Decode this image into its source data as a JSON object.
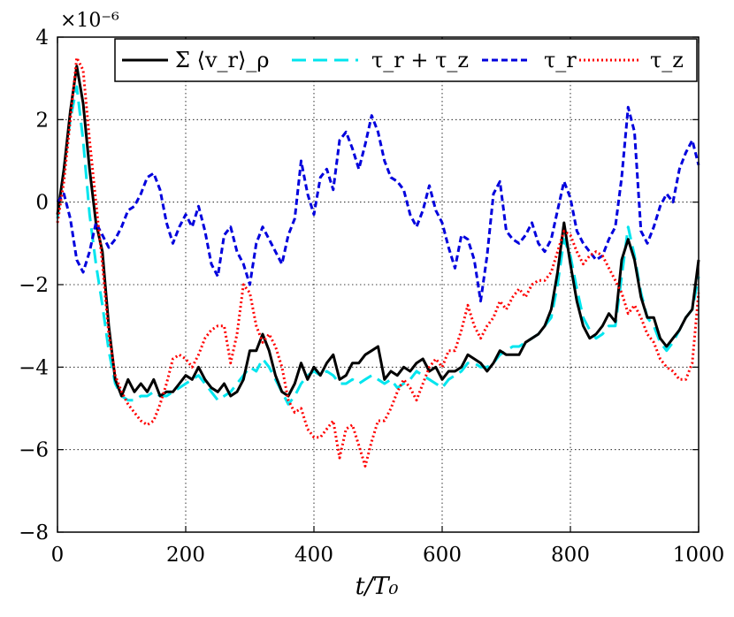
{
  "chart_data": {
    "type": "line",
    "x_label": "t/T₀",
    "y_multiplier": "×10⁻⁶",
    "x_range": [
      0,
      1000
    ],
    "y_range": [
      -8,
      4
    ],
    "x_ticks": [
      0,
      200,
      400,
      600,
      800,
      1000
    ],
    "y_ticks": [
      -8,
      -6,
      -4,
      -2,
      0,
      2,
      4
    ],
    "x_tick_labels": [
      "0",
      "200",
      "400",
      "600",
      "800",
      "1000"
    ],
    "y_tick_labels": [
      "−8",
      "−6",
      "−4",
      "−2",
      "0",
      "2",
      "4"
    ],
    "grid": true,
    "legend_position": "top",
    "series": [
      {
        "name": "Σ ⟨v_r⟩_ρ",
        "color": "#000000",
        "style": "solid",
        "x": [
          0,
          10,
          20,
          30,
          40,
          50,
          60,
          70,
          80,
          90,
          100,
          110,
          120,
          130,
          140,
          150,
          160,
          170,
          180,
          190,
          200,
          210,
          220,
          230,
          240,
          250,
          260,
          270,
          280,
          290,
          300,
          310,
          320,
          330,
          340,
          350,
          360,
          370,
          380,
          390,
          400,
          410,
          420,
          430,
          440,
          450,
          460,
          470,
          480,
          490,
          500,
          510,
          520,
          530,
          540,
          550,
          560,
          570,
          580,
          590,
          600,
          610,
          620,
          630,
          640,
          650,
          660,
          670,
          680,
          690,
          700,
          710,
          720,
          730,
          740,
          750,
          760,
          770,
          780,
          790,
          800,
          810,
          820,
          830,
          840,
          850,
          860,
          870,
          880,
          890,
          900,
          910,
          920,
          930,
          940,
          950,
          960,
          970,
          980,
          990,
          1000
        ],
        "y": [
          -0.3,
          0.8,
          2.2,
          3.3,
          2.4,
          0.8,
          -0.5,
          -1.2,
          -3.0,
          -4.3,
          -4.7,
          -4.3,
          -4.6,
          -4.4,
          -4.6,
          -4.3,
          -4.7,
          -4.6,
          -4.6,
          -4.4,
          -4.2,
          -4.3,
          -4.0,
          -4.3,
          -4.5,
          -4.6,
          -4.4,
          -4.7,
          -4.6,
          -4.3,
          -3.6,
          -3.6,
          -3.2,
          -3.6,
          -4.2,
          -4.6,
          -4.7,
          -4.4,
          -3.9,
          -4.3,
          -4.0,
          -4.2,
          -3.9,
          -3.7,
          -4.3,
          -4.2,
          -3.9,
          -3.9,
          -3.7,
          -3.6,
          -3.5,
          -4.3,
          -4.1,
          -4.2,
          -4.0,
          -4.1,
          -3.9,
          -3.8,
          -4.1,
          -4.0,
          -4.3,
          -4.1,
          -4.1,
          -4.0,
          -3.7,
          -3.8,
          -3.9,
          -4.1,
          -3.9,
          -3.6,
          -3.7,
          -3.7,
          -3.7,
          -3.4,
          -3.3,
          -3.2,
          -3.0,
          -2.6,
          -1.7,
          -0.5,
          -1.5,
          -2.4,
          -3.0,
          -3.3,
          -3.2,
          -3.0,
          -2.7,
          -2.9,
          -1.4,
          -0.9,
          -1.4,
          -2.3,
          -2.8,
          -2.8,
          -3.3,
          -3.5,
          -3.3,
          -3.1,
          -2.8,
          -2.6,
          -1.4
        ]
      },
      {
        "name": "τ_r + τ_z",
        "color": "#00e5ee",
        "style": "dashed-long",
        "x": [
          0,
          10,
          20,
          30,
          40,
          50,
          60,
          70,
          80,
          90,
          100,
          110,
          120,
          130,
          140,
          150,
          160,
          170,
          180,
          190,
          200,
          210,
          220,
          230,
          240,
          250,
          260,
          270,
          280,
          290,
          300,
          310,
          320,
          330,
          340,
          350,
          360,
          370,
          380,
          390,
          400,
          410,
          420,
          430,
          440,
          450,
          460,
          470,
          480,
          490,
          500,
          510,
          520,
          530,
          540,
          550,
          560,
          570,
          580,
          590,
          600,
          610,
          620,
          630,
          640,
          650,
          660,
          670,
          680,
          690,
          700,
          710,
          720,
          730,
          740,
          750,
          760,
          770,
          780,
          790,
          800,
          810,
          820,
          830,
          840,
          850,
          860,
          870,
          880,
          890,
          900,
          910,
          920,
          930,
          940,
          950,
          960,
          970,
          980,
          990,
          1000
        ],
        "y": [
          -0.4,
          0.8,
          2.0,
          2.8,
          1.5,
          -0.3,
          -1.5,
          -2.5,
          -3.6,
          -4.4,
          -4.7,
          -4.8,
          -4.8,
          -4.7,
          -4.7,
          -4.6,
          -4.7,
          -4.7,
          -4.6,
          -4.5,
          -4.4,
          -4.3,
          -4.2,
          -4.4,
          -4.6,
          -4.8,
          -4.7,
          -4.6,
          -4.4,
          -4.2,
          -4.0,
          -4.1,
          -3.8,
          -4.0,
          -4.3,
          -4.6,
          -4.9,
          -4.7,
          -4.4,
          -4.2,
          -4.1,
          -4.2,
          -4.1,
          -4.2,
          -4.4,
          -4.4,
          -4.3,
          -4.4,
          -4.3,
          -4.2,
          -4.3,
          -4.4,
          -4.3,
          -4.5,
          -4.4,
          -4.3,
          -4.1,
          -4.2,
          -4.3,
          -4.4,
          -4.5,
          -4.3,
          -4.2,
          -4.1,
          -3.9,
          -3.9,
          -4.0,
          -4.0,
          -3.9,
          -3.7,
          -3.6,
          -3.5,
          -3.5,
          -3.4,
          -3.3,
          -3.2,
          -3.0,
          -2.8,
          -2.0,
          -0.9,
          -1.3,
          -2.1,
          -2.8,
          -3.1,
          -3.3,
          -3.2,
          -3.0,
          -3.0,
          -1.8,
          -0.6,
          -1.3,
          -2.2,
          -2.8,
          -3.0,
          -3.4,
          -3.6,
          -3.4,
          -3.1,
          -2.8,
          -2.6,
          -1.8
        ]
      },
      {
        "name": "τ_r",
        "color": "#0000dd",
        "style": "dashed",
        "x": [
          0,
          10,
          20,
          30,
          40,
          50,
          60,
          70,
          80,
          90,
          100,
          110,
          120,
          130,
          140,
          150,
          160,
          170,
          180,
          190,
          200,
          210,
          220,
          230,
          240,
          250,
          260,
          270,
          280,
          290,
          300,
          310,
          320,
          330,
          340,
          350,
          360,
          370,
          380,
          390,
          400,
          410,
          420,
          430,
          440,
          450,
          460,
          470,
          480,
          490,
          500,
          510,
          520,
          530,
          540,
          550,
          560,
          570,
          580,
          590,
          600,
          610,
          620,
          630,
          640,
          650,
          660,
          670,
          680,
          690,
          700,
          710,
          720,
          730,
          740,
          750,
          760,
          770,
          780,
          790,
          800,
          810,
          820,
          830,
          840,
          850,
          860,
          870,
          880,
          890,
          900,
          910,
          920,
          930,
          940,
          950,
          960,
          970,
          980,
          990,
          1000
        ],
        "y": [
          0.0,
          0.2,
          -0.4,
          -1.4,
          -1.7,
          -1.2,
          -0.5,
          -0.8,
          -1.1,
          -0.9,
          -0.6,
          -0.2,
          -0.1,
          0.2,
          0.6,
          0.7,
          0.3,
          -0.5,
          -1.0,
          -0.6,
          -0.3,
          -0.6,
          -0.1,
          -0.7,
          -1.5,
          -1.8,
          -0.8,
          -0.6,
          -1.2,
          -1.5,
          -2.0,
          -1.0,
          -0.6,
          -0.9,
          -1.2,
          -1.5,
          -0.8,
          -0.4,
          1.0,
          0.2,
          -0.3,
          0.6,
          0.8,
          0.3,
          1.5,
          1.7,
          1.3,
          0.8,
          1.4,
          2.1,
          1.7,
          1.0,
          0.6,
          0.5,
          0.3,
          -0.3,
          -0.6,
          -0.2,
          0.4,
          -0.2,
          -0.5,
          -1.1,
          -1.6,
          -0.8,
          -0.9,
          -1.4,
          -2.4,
          -1.3,
          0.2,
          0.5,
          -0.7,
          -0.9,
          -1.0,
          -0.8,
          -0.5,
          -1.0,
          -1.2,
          -0.9,
          -0.2,
          0.5,
          0.1,
          -0.7,
          -1.0,
          -1.2,
          -1.4,
          -1.3,
          -0.9,
          -0.6,
          0.6,
          2.3,
          1.7,
          -0.7,
          -1.0,
          -0.6,
          -0.1,
          0.2,
          0.0,
          0.8,
          1.2,
          1.5,
          0.9
        ]
      },
      {
        "name": "τ_z",
        "color": "#ff0000",
        "style": "dotted",
        "x": [
          0,
          10,
          20,
          30,
          40,
          50,
          60,
          70,
          80,
          90,
          100,
          110,
          120,
          130,
          140,
          150,
          160,
          170,
          180,
          190,
          200,
          210,
          220,
          230,
          240,
          250,
          260,
          270,
          280,
          290,
          300,
          310,
          320,
          330,
          340,
          350,
          360,
          370,
          380,
          390,
          400,
          410,
          420,
          430,
          440,
          450,
          460,
          470,
          480,
          490,
          500,
          510,
          520,
          530,
          540,
          550,
          560,
          570,
          580,
          590,
          600,
          610,
          620,
          630,
          640,
          650,
          660,
          670,
          680,
          690,
          700,
          710,
          720,
          730,
          740,
          750,
          760,
          770,
          780,
          790,
          800,
          810,
          820,
          830,
          840,
          850,
          860,
          870,
          880,
          890,
          900,
          910,
          920,
          930,
          940,
          950,
          960,
          970,
          980,
          990,
          1000
        ],
        "y": [
          -0.5,
          0.5,
          2.0,
          3.5,
          3.2,
          1.5,
          0.0,
          -1.5,
          -3.2,
          -4.2,
          -4.6,
          -4.9,
          -5.1,
          -5.3,
          -5.4,
          -5.3,
          -4.9,
          -4.4,
          -3.8,
          -3.7,
          -3.8,
          -4.0,
          -3.7,
          -3.3,
          -3.1,
          -3.0,
          -3.0,
          -3.9,
          -3.2,
          -2.0,
          -2.2,
          -3.0,
          -3.4,
          -3.2,
          -3.5,
          -4.0,
          -4.8,
          -5.1,
          -5.0,
          -5.5,
          -5.7,
          -5.7,
          -5.5,
          -5.3,
          -6.2,
          -5.5,
          -5.4,
          -5.9,
          -6.4,
          -5.8,
          -5.3,
          -5.3,
          -5.0,
          -4.6,
          -4.3,
          -4.5,
          -4.8,
          -4.4,
          -4.0,
          -3.8,
          -4.0,
          -3.6,
          -3.6,
          -3.1,
          -2.5,
          -3.0,
          -3.3,
          -3.0,
          -2.8,
          -2.4,
          -2.6,
          -2.3,
          -2.1,
          -2.3,
          -2.0,
          -1.9,
          -1.9,
          -1.7,
          -1.2,
          -0.7,
          -0.8,
          -1.2,
          -1.5,
          -1.3,
          -1.2,
          -1.3,
          -1.6,
          -1.9,
          -2.2,
          -2.7,
          -2.5,
          -2.8,
          -3.2,
          -3.4,
          -3.8,
          -4.0,
          -4.1,
          -4.3,
          -4.3,
          -3.9,
          -2.2
        ]
      }
    ]
  }
}
